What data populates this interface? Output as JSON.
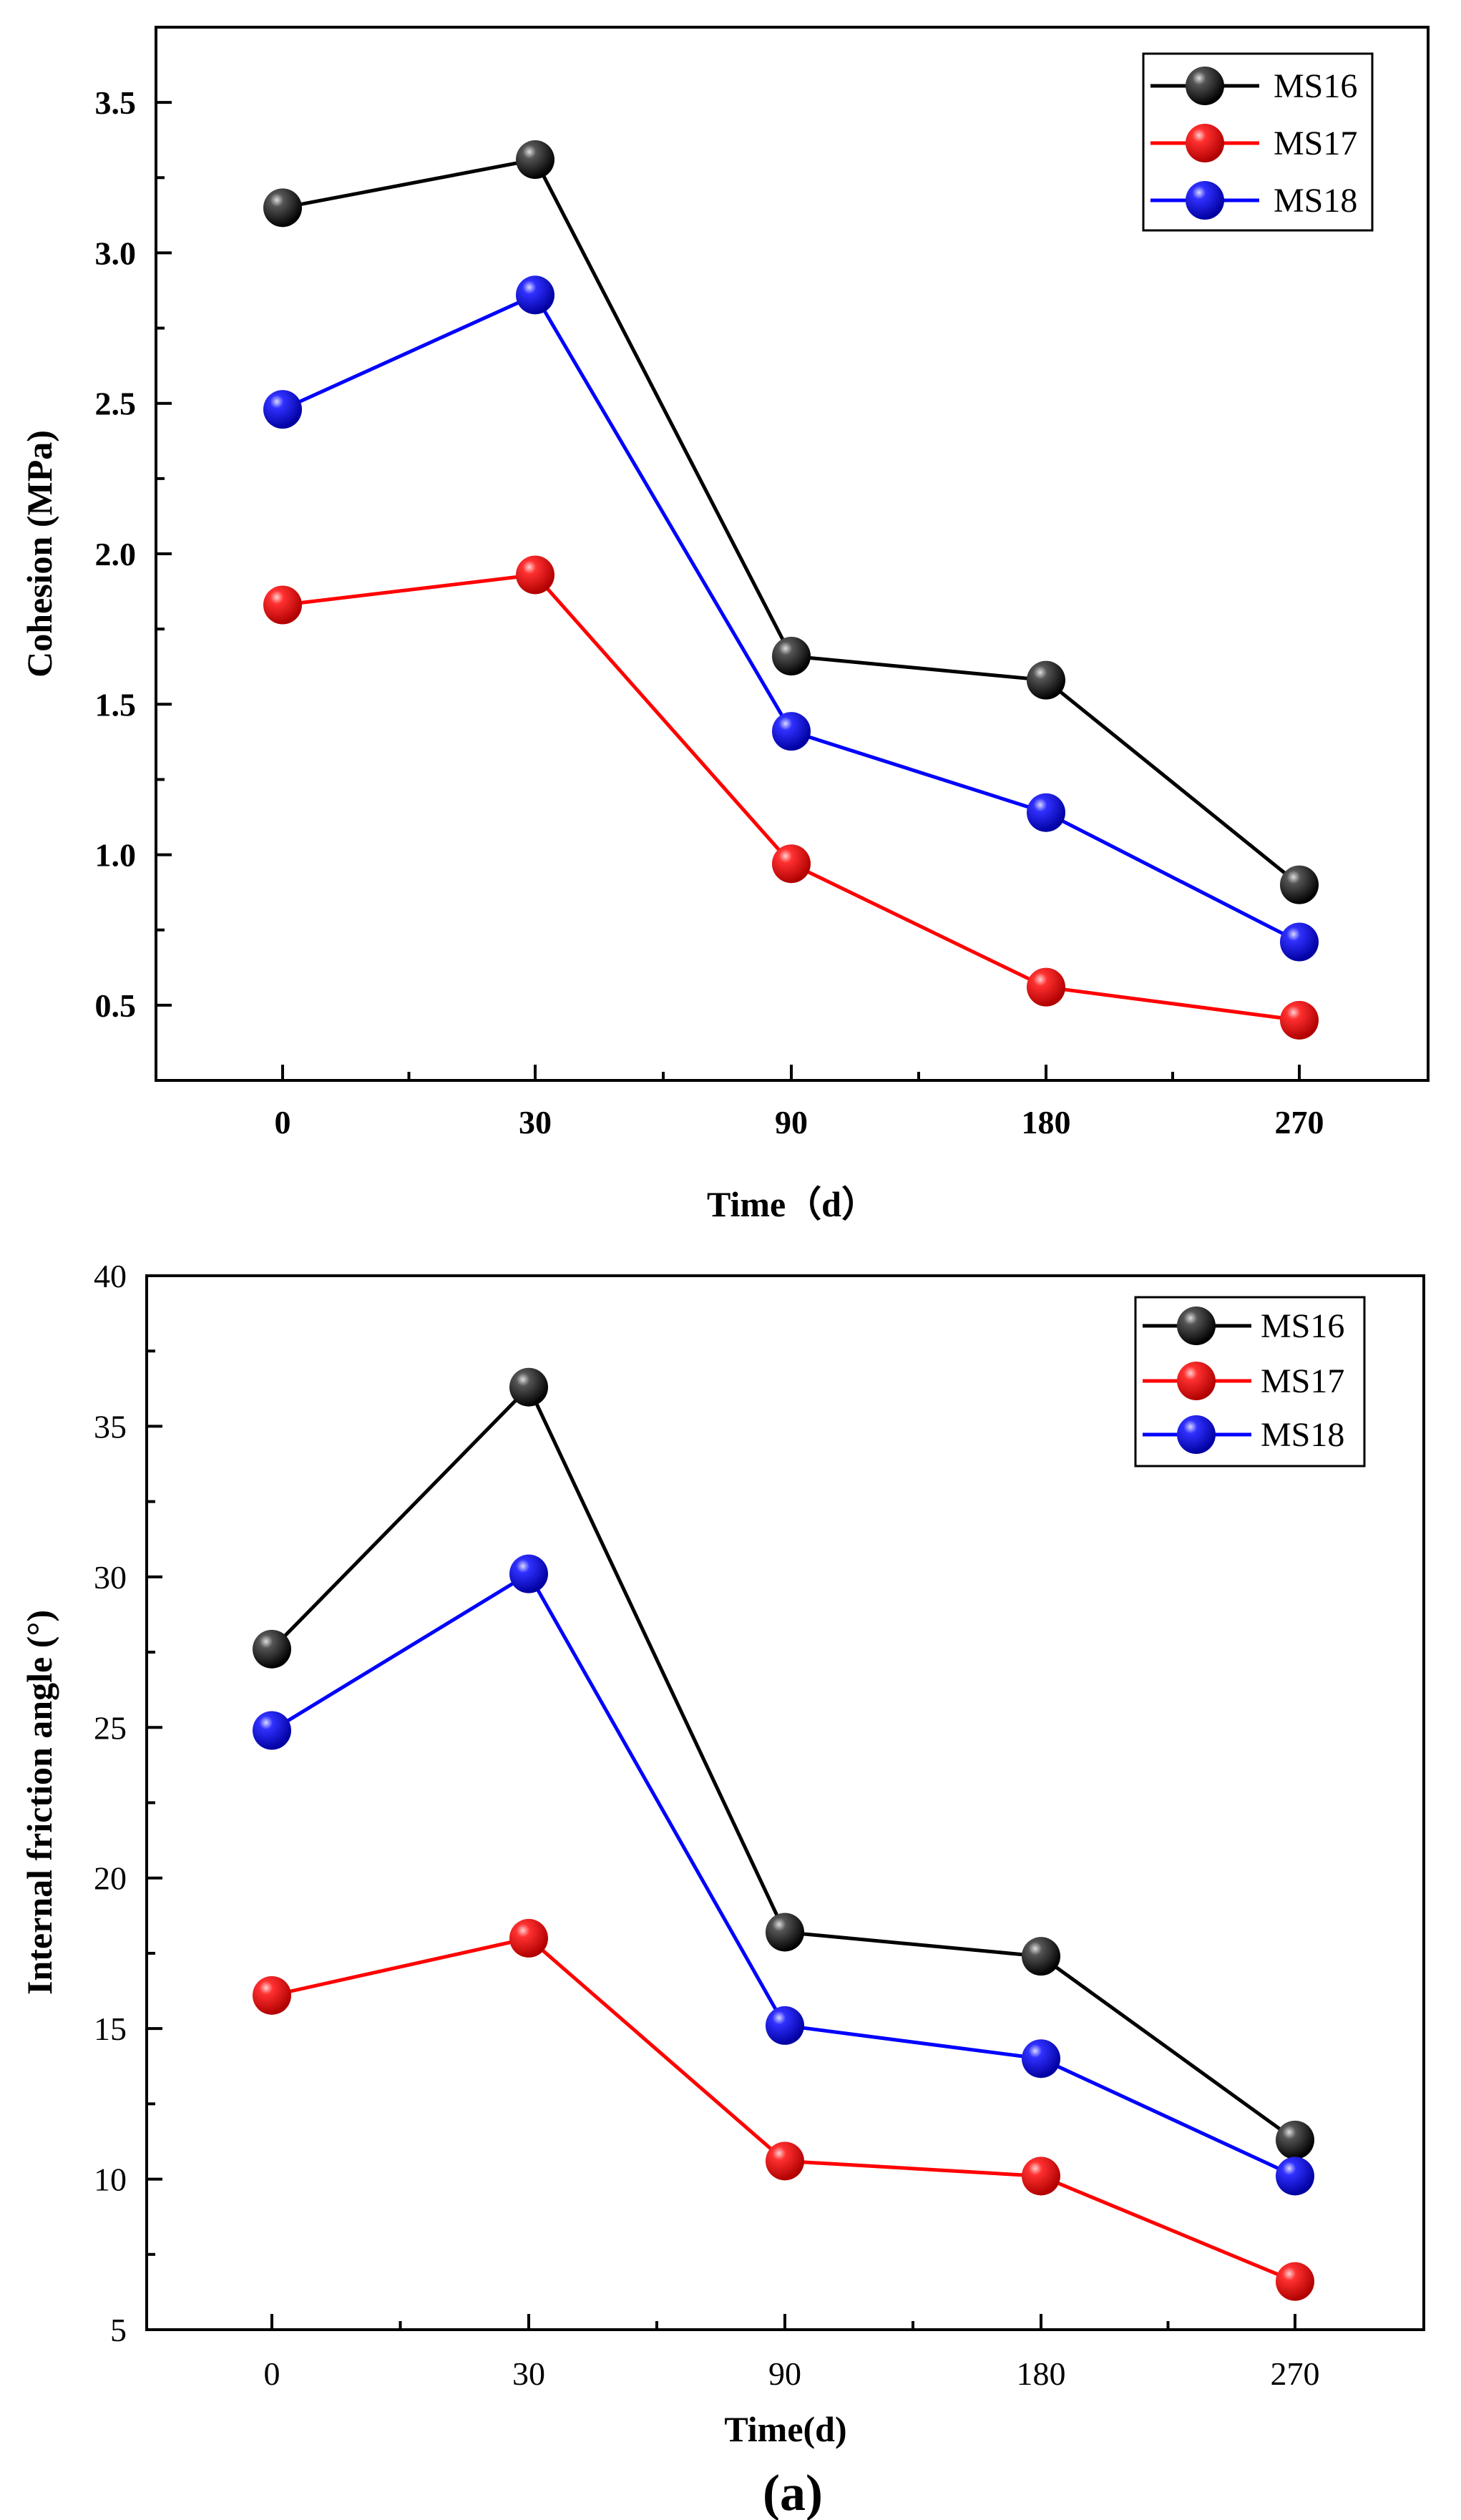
{
  "chart_data": [
    {
      "type": "line",
      "title": "",
      "xlabel": "Time（d）",
      "ylabel": "Cohesion (MPa)",
      "categories": [
        "0",
        "30",
        "90",
        "180",
        "270"
      ],
      "ylim": [
        0.25,
        3.75
      ],
      "yticks": [
        "0.5",
        "1.0",
        "1.5",
        "2.0",
        "2.5",
        "3.0",
        "3.5"
      ],
      "legend_position": "top-right",
      "series": [
        {
          "name": "MS16",
          "color": "#000000",
          "values": [
            3.15,
            3.31,
            1.66,
            1.58,
            0.9
          ]
        },
        {
          "name": "MS17",
          "color": "#ff0000",
          "values": [
            1.83,
            1.93,
            0.97,
            0.56,
            0.45
          ]
        },
        {
          "name": "MS18",
          "color": "#0000ff",
          "values": [
            2.48,
            2.86,
            1.41,
            1.14,
            0.71
          ]
        }
      ]
    },
    {
      "type": "line",
      "title": "",
      "xlabel": "Time(d)",
      "ylabel": "Internal friction angle (°)",
      "categories": [
        "0",
        "30",
        "90",
        "180",
        "270"
      ],
      "ylim": [
        5,
        40
      ],
      "yticks": [
        "5",
        "10",
        "15",
        "20",
        "25",
        "30",
        "35",
        "40"
      ],
      "legend_position": "top-right",
      "series": [
        {
          "name": "MS16",
          "color": "#000000",
          "values": [
            27.6,
            36.3,
            18.2,
            17.4,
            11.3
          ]
        },
        {
          "name": "MS17",
          "color": "#ff0000",
          "values": [
            16.1,
            18.0,
            10.6,
            10.1,
            6.6
          ]
        },
        {
          "name": "MS18",
          "color": "#0000ff",
          "values": [
            24.9,
            30.1,
            15.1,
            14.0,
            10.1
          ]
        }
      ]
    }
  ],
  "panel_label": "(a)"
}
